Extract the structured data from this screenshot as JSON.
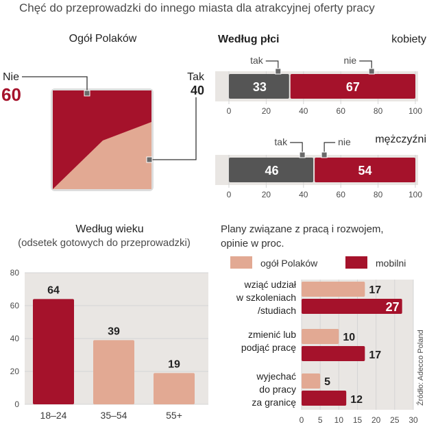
{
  "header": {
    "title": "Chęć do przeprowadzki do innego miasta dla atrakcyjnej oferty pracy"
  },
  "source": "Źródło: Adecco Poland",
  "colors": {
    "dark": "#a5122b",
    "light": "#e2a993",
    "gray": "#555555",
    "grid": "#d4d4d4",
    "track": "#e9e6e3"
  },
  "chart_data": [
    {
      "id": "ogol",
      "type": "area",
      "title": "Ogół Polaków",
      "series": [
        {
          "name": "Nie",
          "value": 60,
          "label": "Nie",
          "value_label": "60"
        },
        {
          "name": "Tak",
          "value": 40,
          "label": "Tak",
          "value_label": "40"
        }
      ]
    },
    {
      "id": "plec",
      "type": "bar",
      "title": "Według płci",
      "xlim": [
        0,
        100
      ],
      "ticks": [
        "0",
        "20",
        "40",
        "60",
        "80",
        "100"
      ],
      "groups": [
        {
          "name": "kobiety",
          "tak": 33,
          "nie": 67,
          "tak_label": "tak",
          "nie_label": "nie"
        },
        {
          "name": "mężczyźni",
          "tak": 46,
          "nie": 54,
          "tak_label": "tak",
          "nie_label": "nie"
        }
      ]
    },
    {
      "id": "wiek",
      "type": "bar",
      "title": "Według wieku",
      "subtitle": "(odsetek gotowych do przeprowadzki)",
      "categories": [
        "18–24",
        "35–54",
        "55+"
      ],
      "values": [
        64,
        39,
        19
      ],
      "ylim": [
        0,
        80
      ],
      "yticks": [
        "0",
        "20",
        "40",
        "60",
        "80"
      ]
    },
    {
      "id": "plany",
      "type": "bar",
      "title_lines": [
        "Plany związane z pracą i rozwojem,",
        "opinie w proc."
      ],
      "legend": [
        "ogół Polaków",
        "mobilni"
      ],
      "xlim": [
        0,
        30
      ],
      "ticks": [
        "0",
        "5",
        "10",
        "15",
        "20",
        "25",
        "30"
      ],
      "categories": [
        {
          "lines": [
            "wziąć udział",
            "w szkoleniach",
            "/studiach"
          ],
          "ogol": 17,
          "mobilni": 27
        },
        {
          "lines": [
            "zmienić lub",
            "podjąć pracę"
          ],
          "ogol": 10,
          "mobilni": 17
        },
        {
          "lines": [
            "wyjechać",
            "do pracy",
            "za granicę"
          ],
          "ogol": 5,
          "mobilni": 12
        }
      ]
    }
  ]
}
